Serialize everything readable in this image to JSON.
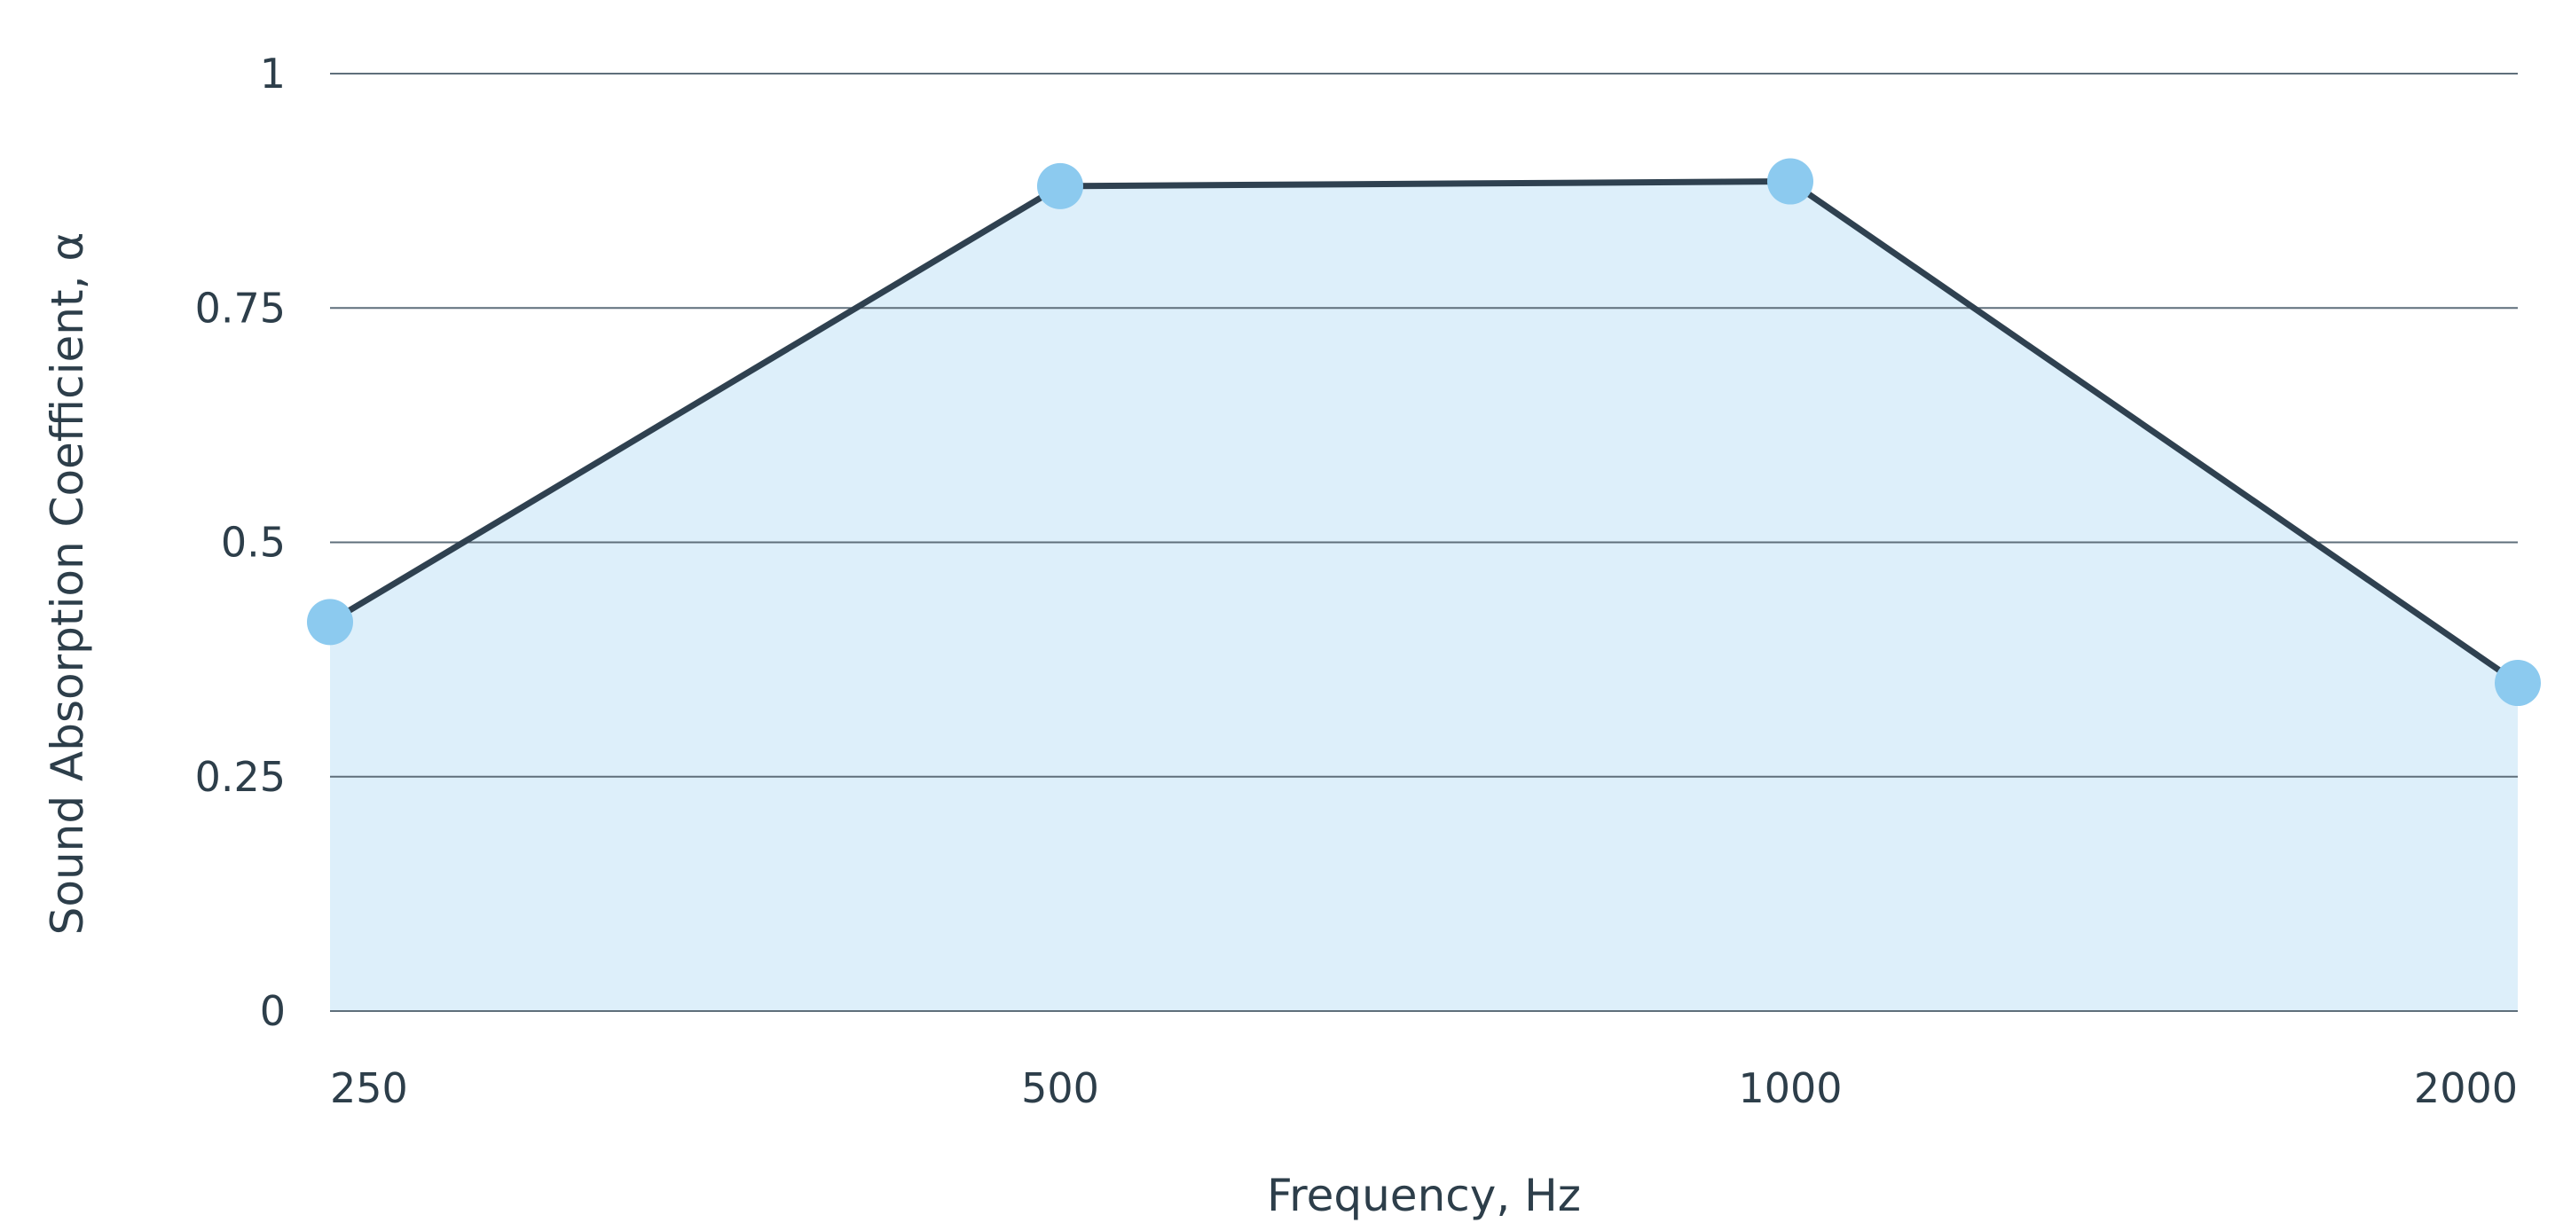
{
  "chart_data": {
    "type": "area",
    "categories": [
      "250",
      "500",
      "1000",
      "2000"
    ],
    "values": [
      0.415,
      0.88,
      0.885,
      0.35
    ],
    "xlabel": "Frequency, Hz",
    "ylabel": "Sound Absorption Coefficient, α",
    "ylim": [
      0,
      1
    ],
    "yticks": [
      "0",
      "0.25",
      "0.5",
      "0.75",
      "1"
    ],
    "grid": "horizontal",
    "legend": "none",
    "colors": {
      "line": "#2f4150",
      "marker": "#8ccaef",
      "fill": "#ddeffa",
      "grid": "#5f6f7b",
      "text": "#2d3e4a"
    }
  }
}
